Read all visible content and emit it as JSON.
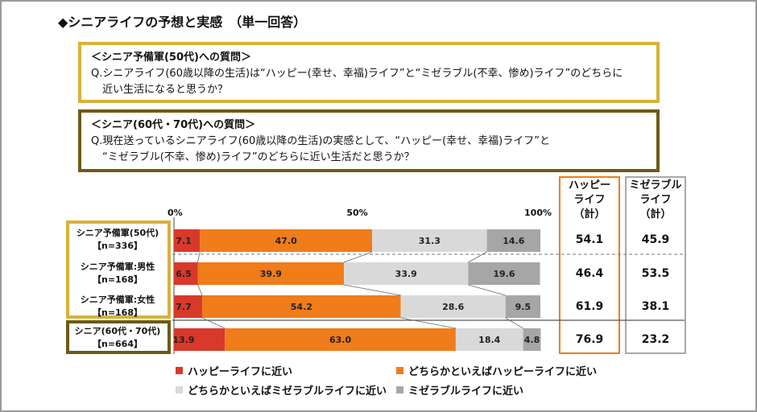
{
  "title": "◆シニアライフの予想と実感　（単一回答）",
  "question_yobigun": {
    "header": "＜シニア予備軍(50代)への質問＞",
    "line1": "Q.シニアライフ(60歳以降の生活)は“ハッピー(幸せ、幸福)ライフ”と“ミゼラブル(不幸、惨め)ライフ”のどちらに",
    "line2": "近い生活になると思うか？"
  },
  "question_senior": {
    "header": "＜シニア(60代・70代)への質問＞",
    "line1": "Q.現在送っているシニアライフ(60歳以降の生活)の実感として、“ハッピー(幸せ、幸福)ライフ”と",
    "line2": "“ミゼラブル(不幸、惨め)ライフ”のどちらに近い生活だと思うか？"
  },
  "column_headers": {
    "happy": [
      "ハッピー",
      "ライフ",
      "（計）"
    ],
    "miserable": [
      "ミゼラブル",
      "ライフ",
      "（計）"
    ]
  },
  "colors": {
    "happy_near": "#d8392b",
    "rather_happy": "#f07c1a",
    "rather_miserable": "#d9d9d9",
    "miserable_near": "#a6a6a6",
    "gold_frame": "#d8b13c",
    "olive_frame": "#6e5a16"
  },
  "chart_data": {
    "type": "bar",
    "orientation": "horizontal-stacked-100",
    "x_ticks": [
      "0%",
      "50%",
      "100%"
    ],
    "xlim": [
      0,
      100
    ],
    "categories": [
      {
        "name": "シニア予備軍(50代)",
        "n": "【n=336】"
      },
      {
        "name": "シニア予備軍:男性",
        "n": "【n=168】"
      },
      {
        "name": "シニア予備軍:女性",
        "n": "【n=168】"
      },
      {
        "name": "シニア(60代・70代)",
        "n": "【n=664】"
      }
    ],
    "series": [
      {
        "name": "ハッピーライフに近い",
        "values": [
          7.1,
          6.5,
          7.7,
          13.9
        ]
      },
      {
        "name": "どちらかといえばハッピーライフに近い",
        "values": [
          47.0,
          39.9,
          54.2,
          63.0
        ]
      },
      {
        "name": "どちらかといえばミゼラブルライフに近い",
        "values": [
          31.3,
          33.9,
          28.6,
          18.4
        ]
      },
      {
        "name": "ミゼラブルライフに近い",
        "values": [
          14.6,
          19.6,
          9.5,
          4.8
        ]
      }
    ],
    "totals_happy": [
      "54.1",
      "46.4",
      "61.9",
      "76.9"
    ],
    "totals_miserable": [
      "45.9",
      "53.5",
      "38.1",
      "23.2"
    ],
    "legend_position": "bottom"
  }
}
